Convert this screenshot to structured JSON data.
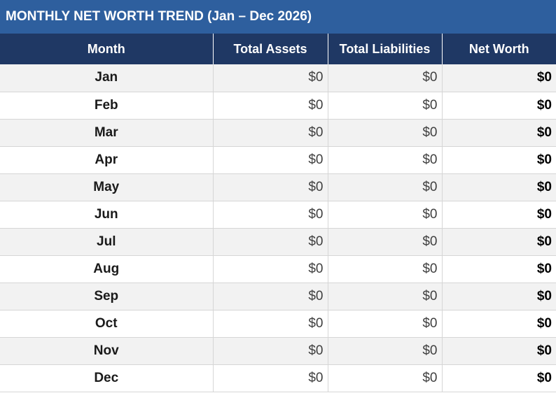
{
  "title": "MONTHLY NET WORTH TREND (Jan – Dec 2026)",
  "headers": {
    "month": "Month",
    "total_assets": "Total Assets",
    "total_liabilities": "Total Liabilities",
    "net_worth": "Net Worth"
  },
  "rows": [
    {
      "month": "Jan",
      "assets": "$0",
      "liabilities": "$0",
      "net_worth": "$0"
    },
    {
      "month": "Feb",
      "assets": "$0",
      "liabilities": "$0",
      "net_worth": "$0"
    },
    {
      "month": "Mar",
      "assets": "$0",
      "liabilities": "$0",
      "net_worth": "$0"
    },
    {
      "month": "Apr",
      "assets": "$0",
      "liabilities": "$0",
      "net_worth": "$0"
    },
    {
      "month": "May",
      "assets": "$0",
      "liabilities": "$0",
      "net_worth": "$0"
    },
    {
      "month": "Jun",
      "assets": "$0",
      "liabilities": "$0",
      "net_worth": "$0"
    },
    {
      "month": "Jul",
      "assets": "$0",
      "liabilities": "$0",
      "net_worth": "$0"
    },
    {
      "month": "Aug",
      "assets": "$0",
      "liabilities": "$0",
      "net_worth": "$0"
    },
    {
      "month": "Sep",
      "assets": "$0",
      "liabilities": "$0",
      "net_worth": "$0"
    },
    {
      "month": "Oct",
      "assets": "$0",
      "liabilities": "$0",
      "net_worth": "$0"
    },
    {
      "month": "Nov",
      "assets": "$0",
      "liabilities": "$0",
      "net_worth": "$0"
    },
    {
      "month": "Dec",
      "assets": "$0",
      "liabilities": "$0",
      "net_worth": "$0"
    }
  ]
}
